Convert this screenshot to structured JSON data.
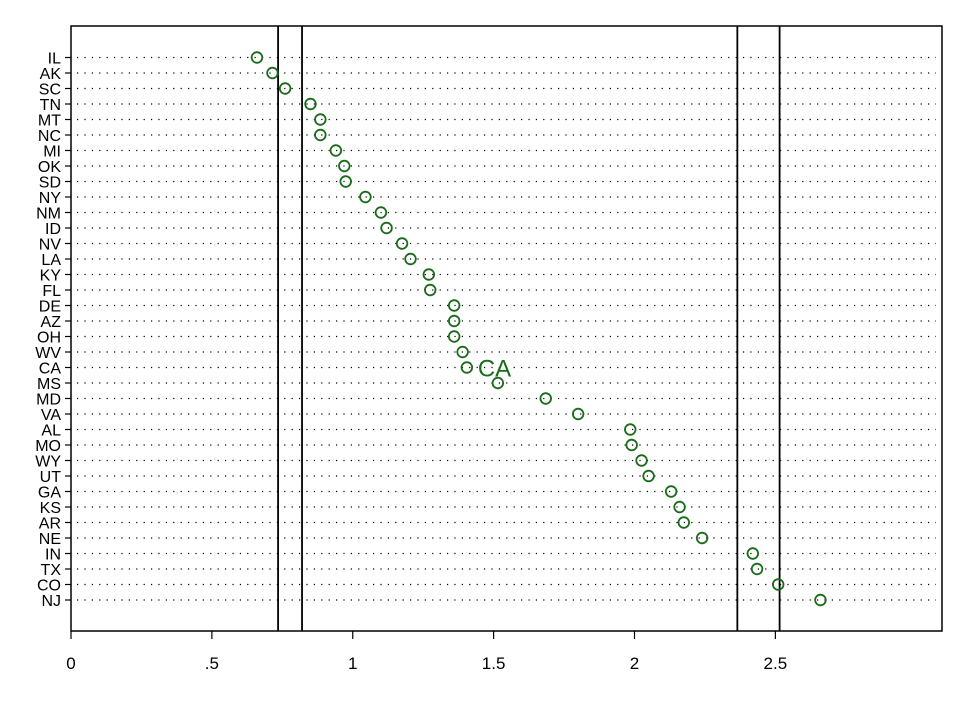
{
  "chart_data": {
    "type": "scatter",
    "title": "",
    "xlabel": "",
    "ylabel": "",
    "xlim": [
      0,
      3.1
    ],
    "xticks": [
      {
        "value": 0,
        "label": "0"
      },
      {
        "value": 0.5,
        "label": ".5"
      },
      {
        "value": 1,
        "label": "1"
      },
      {
        "value": 1.5,
        "label": "1.5"
      },
      {
        "value": 2,
        "label": "2"
      },
      {
        "value": 2.5,
        "label": "2.5"
      }
    ],
    "grid": "dotted horizontal lines per category",
    "marker_color": "#1b6b1b",
    "categories": [
      "IL",
      "AK",
      "SC",
      "TN",
      "MT",
      "NC",
      "MI",
      "OK",
      "SD",
      "NY",
      "NM",
      "ID",
      "NV",
      "LA",
      "KY",
      "FL",
      "DE",
      "AZ",
      "OH",
      "WV",
      "CA",
      "MS",
      "MD",
      "VA",
      "AL",
      "MO",
      "WY",
      "UT",
      "GA",
      "KS",
      "AR",
      "NE",
      "IN",
      "TX",
      "CO",
      "NJ"
    ],
    "values": [
      0.66,
      0.715,
      0.76,
      0.85,
      0.885,
      0.885,
      0.94,
      0.97,
      0.975,
      1.045,
      1.1,
      1.12,
      1.175,
      1.205,
      1.27,
      1.275,
      1.36,
      1.36,
      1.36,
      1.39,
      1.405,
      1.515,
      1.685,
      1.8,
      1.985,
      1.99,
      2.025,
      2.05,
      2.13,
      2.16,
      2.175,
      2.24,
      2.42,
      2.435,
      2.51,
      2.66
    ],
    "reference_lines": [
      0.735,
      0.82,
      2.365,
      2.515
    ],
    "annotations": [
      {
        "label": "CA",
        "category": "CA",
        "x": 1.405
      }
    ]
  }
}
